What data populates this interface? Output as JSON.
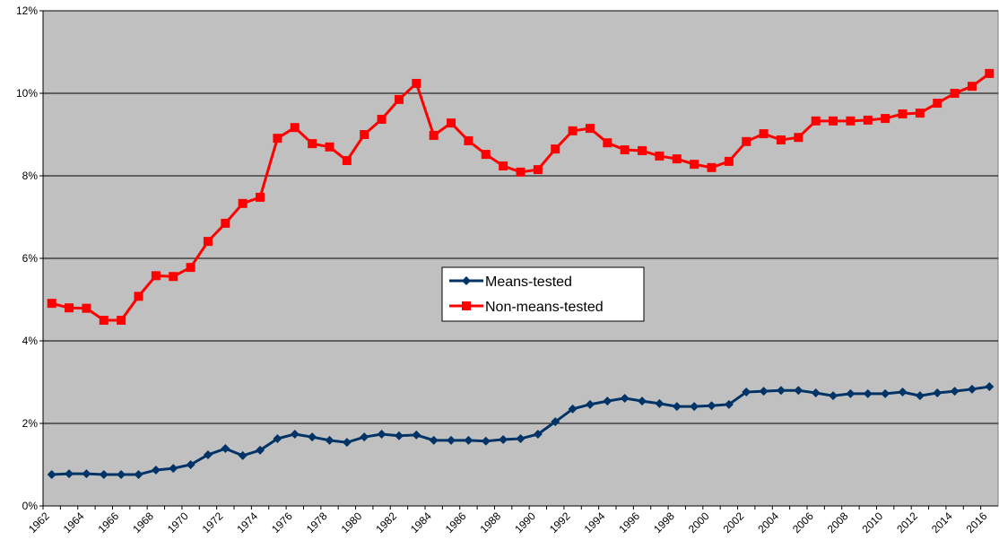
{
  "chart_data": {
    "type": "line",
    "categories": [
      "1962",
      null,
      "1964",
      null,
      "1966",
      null,
      "1968",
      null,
      "1970",
      null,
      "1972",
      null,
      "1974",
      null,
      "1976",
      null,
      "1978",
      null,
      "1980",
      null,
      "1982",
      null,
      "1984",
      null,
      "1986",
      null,
      "1988",
      null,
      "1990",
      null,
      "1992",
      null,
      "1994",
      null,
      "1996",
      null,
      "1998",
      null,
      "2000",
      null,
      "2002",
      null,
      "2004",
      null,
      "2006",
      null,
      "2008",
      null,
      "2010",
      null,
      "2012",
      null,
      "2014",
      null,
      "2016"
    ],
    "series": [
      {
        "name": "Means-tested",
        "color": "#003366",
        "marker": "diamond",
        "values": [
          0.76,
          0.78,
          0.78,
          0.76,
          0.76,
          0.76,
          0.87,
          0.91,
          1.0,
          1.24,
          1.39,
          1.22,
          1.35,
          1.63,
          1.74,
          1.67,
          1.59,
          1.54,
          1.67,
          1.74,
          1.7,
          1.72,
          1.59,
          1.59,
          1.59,
          1.57,
          1.61,
          1.63,
          1.74,
          2.04,
          2.35,
          2.46,
          2.54,
          2.61,
          2.54,
          2.48,
          2.41,
          2.41,
          2.43,
          2.46,
          2.76,
          2.78,
          2.8,
          2.8,
          2.74,
          2.67,
          2.72,
          2.72,
          2.72,
          2.76,
          2.67,
          2.74,
          2.78,
          2.83,
          2.89
        ]
      },
      {
        "name": "Non-means-tested",
        "color": "#ff0000",
        "marker": "square",
        "values": [
          4.91,
          4.8,
          4.79,
          4.5,
          4.5,
          5.08,
          5.58,
          5.56,
          5.78,
          6.41,
          6.85,
          7.33,
          7.48,
          8.91,
          9.17,
          8.78,
          8.7,
          8.37,
          9.0,
          9.37,
          9.85,
          10.24,
          8.98,
          9.28,
          8.85,
          8.52,
          8.24,
          8.09,
          8.15,
          8.65,
          9.09,
          9.15,
          8.8,
          8.63,
          8.61,
          8.48,
          8.41,
          8.28,
          8.2,
          8.35,
          8.83,
          9.02,
          8.87,
          8.93,
          9.33,
          9.33,
          9.33,
          9.35,
          9.39,
          9.5,
          9.52,
          9.76,
          10.0,
          10.17,
          10.48
        ]
      }
    ],
    "ylim": [
      0,
      12
    ],
    "yticks": [
      {
        "value": 0,
        "label": "0%"
      },
      {
        "value": 2,
        "label": "2%"
      },
      {
        "value": 4,
        "label": "4%"
      },
      {
        "value": 6,
        "label": "6%"
      },
      {
        "value": 8,
        "label": "8%"
      },
      {
        "value": 10,
        "label": "10%"
      },
      {
        "value": 12,
        "label": "12%"
      }
    ],
    "grid": true,
    "plot_background": "#c0c0c0",
    "legend_position": "center"
  }
}
